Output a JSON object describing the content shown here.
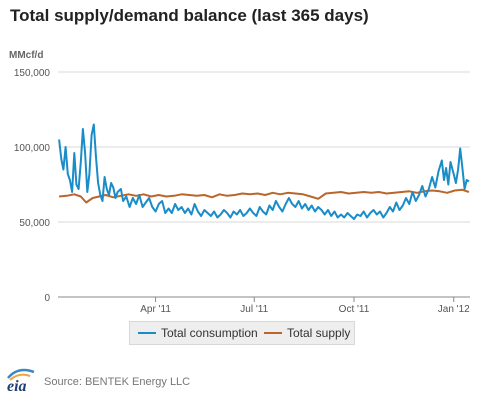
{
  "chart_data": {
    "type": "line",
    "title": "Total supply/demand balance (last 365 days)",
    "ylabel": "MMcf/d",
    "xlabel": "",
    "ylim": [
      0,
      150000
    ],
    "yticks": [
      0,
      50000,
      100000,
      150000
    ],
    "ytick_labels": [
      "0",
      "50,000",
      "100,000",
      "150,000"
    ],
    "xlim": [
      "2011-01-01",
      "2012-01-16"
    ],
    "xticks": [
      "2011-04-01",
      "2011-07-01",
      "2011-10-01",
      "2012-01-01"
    ],
    "xtick_labels": [
      "Apr '11",
      "Jul '11",
      "Oct '11",
      "Jan '12"
    ],
    "grid": "horizontal",
    "legend": "bottom",
    "series": [
      {
        "name": "Total consumption",
        "color": "#1a8dc9",
        "points": [
          [
            "2011-01-02",
            105000
          ],
          [
            "2011-01-04",
            92000
          ],
          [
            "2011-01-06",
            85000
          ],
          [
            "2011-01-08",
            100000
          ],
          [
            "2011-01-10",
            82000
          ],
          [
            "2011-01-12",
            78000
          ],
          [
            "2011-01-14",
            70000
          ],
          [
            "2011-01-16",
            96000
          ],
          [
            "2011-01-18",
            75000
          ],
          [
            "2011-01-20",
            72000
          ],
          [
            "2011-01-22",
            90000
          ],
          [
            "2011-01-24",
            112000
          ],
          [
            "2011-01-26",
            96000
          ],
          [
            "2011-01-28",
            70000
          ],
          [
            "2011-01-30",
            82000
          ],
          [
            "2011-02-01",
            108000
          ],
          [
            "2011-02-03",
            115000
          ],
          [
            "2011-02-05",
            94000
          ],
          [
            "2011-02-07",
            76000
          ],
          [
            "2011-02-09",
            68000
          ],
          [
            "2011-02-11",
            64000
          ],
          [
            "2011-02-13",
            80000
          ],
          [
            "2011-02-15",
            72000
          ],
          [
            "2011-02-17",
            68000
          ],
          [
            "2011-02-19",
            76000
          ],
          [
            "2011-02-21",
            73000
          ],
          [
            "2011-02-23",
            66000
          ],
          [
            "2011-02-25",
            70000
          ],
          [
            "2011-02-28",
            72000
          ],
          [
            "2011-03-02",
            64000
          ],
          [
            "2011-03-05",
            67000
          ],
          [
            "2011-03-08",
            60000
          ],
          [
            "2011-03-11",
            66000
          ],
          [
            "2011-03-14",
            62000
          ],
          [
            "2011-03-17",
            68000
          ],
          [
            "2011-03-20",
            60000
          ],
          [
            "2011-03-23",
            63000
          ],
          [
            "2011-03-26",
            66000
          ],
          [
            "2011-03-29",
            60000
          ],
          [
            "2011-04-01",
            57000
          ],
          [
            "2011-04-04",
            62000
          ],
          [
            "2011-04-07",
            64000
          ],
          [
            "2011-04-10",
            56000
          ],
          [
            "2011-04-13",
            59000
          ],
          [
            "2011-04-16",
            56000
          ],
          [
            "2011-04-19",
            62000
          ],
          [
            "2011-04-22",
            58000
          ],
          [
            "2011-04-25",
            60000
          ],
          [
            "2011-04-28",
            56000
          ],
          [
            "2011-05-01",
            59000
          ],
          [
            "2011-05-04",
            55000
          ],
          [
            "2011-05-07",
            62000
          ],
          [
            "2011-05-10",
            57000
          ],
          [
            "2011-05-13",
            54000
          ],
          [
            "2011-05-16",
            58000
          ],
          [
            "2011-05-19",
            56000
          ],
          [
            "2011-05-22",
            54000
          ],
          [
            "2011-05-25",
            57000
          ],
          [
            "2011-05-28",
            53000
          ],
          [
            "2011-05-31",
            55000
          ],
          [
            "2011-06-03",
            58000
          ],
          [
            "2011-06-06",
            56000
          ],
          [
            "2011-06-09",
            53000
          ],
          [
            "2011-06-12",
            57000
          ],
          [
            "2011-06-15",
            55000
          ],
          [
            "2011-06-18",
            58000
          ],
          [
            "2011-06-21",
            54000
          ],
          [
            "2011-06-24",
            56000
          ],
          [
            "2011-06-27",
            59000
          ],
          [
            "2011-06-30",
            56000
          ],
          [
            "2011-07-03",
            54000
          ],
          [
            "2011-07-06",
            60000
          ],
          [
            "2011-07-09",
            57000
          ],
          [
            "2011-07-12",
            55000
          ],
          [
            "2011-07-15",
            61000
          ],
          [
            "2011-07-18",
            58000
          ],
          [
            "2011-07-21",
            64000
          ],
          [
            "2011-07-24",
            60000
          ],
          [
            "2011-07-27",
            57000
          ],
          [
            "2011-07-30",
            62000
          ],
          [
            "2011-08-02",
            66000
          ],
          [
            "2011-08-05",
            62000
          ],
          [
            "2011-08-08",
            60000
          ],
          [
            "2011-08-11",
            64000
          ],
          [
            "2011-08-14",
            59000
          ],
          [
            "2011-08-17",
            62000
          ],
          [
            "2011-08-20",
            58000
          ],
          [
            "2011-08-23",
            61000
          ],
          [
            "2011-08-26",
            57000
          ],
          [
            "2011-08-29",
            60000
          ],
          [
            "2011-09-01",
            58000
          ],
          [
            "2011-09-04",
            55000
          ],
          [
            "2011-09-07",
            58000
          ],
          [
            "2011-09-10",
            54000
          ],
          [
            "2011-09-13",
            57000
          ],
          [
            "2011-09-16",
            53000
          ],
          [
            "2011-09-19",
            55000
          ],
          [
            "2011-09-22",
            53000
          ],
          [
            "2011-09-25",
            56000
          ],
          [
            "2011-09-28",
            54000
          ],
          [
            "2011-10-01",
            52000
          ],
          [
            "2011-10-04",
            55000
          ],
          [
            "2011-10-07",
            54000
          ],
          [
            "2011-10-10",
            57000
          ],
          [
            "2011-10-13",
            53000
          ],
          [
            "2011-10-16",
            56000
          ],
          [
            "2011-10-19",
            58000
          ],
          [
            "2011-10-22",
            55000
          ],
          [
            "2011-10-25",
            57000
          ],
          [
            "2011-10-28",
            53000
          ],
          [
            "2011-10-31",
            56000
          ],
          [
            "2011-11-03",
            60000
          ],
          [
            "2011-11-06",
            57000
          ],
          [
            "2011-11-09",
            63000
          ],
          [
            "2011-11-12",
            58000
          ],
          [
            "2011-11-15",
            61000
          ],
          [
            "2011-11-18",
            66000
          ],
          [
            "2011-11-21",
            62000
          ],
          [
            "2011-11-24",
            70000
          ],
          [
            "2011-11-27",
            64000
          ],
          [
            "2011-11-30",
            68000
          ],
          [
            "2011-12-03",
            74000
          ],
          [
            "2011-12-06",
            67000
          ],
          [
            "2011-12-09",
            72000
          ],
          [
            "2011-12-12",
            80000
          ],
          [
            "2011-12-15",
            73000
          ],
          [
            "2011-12-18",
            84000
          ],
          [
            "2011-12-21",
            91000
          ],
          [
            "2011-12-23",
            78000
          ],
          [
            "2011-12-25",
            86000
          ],
          [
            "2011-12-27",
            75000
          ],
          [
            "2011-12-29",
            90000
          ],
          [
            "2012-01-01",
            82000
          ],
          [
            "2012-01-03",
            76000
          ],
          [
            "2012-01-05",
            85000
          ],
          [
            "2012-01-07",
            99000
          ],
          [
            "2012-01-09",
            86000
          ],
          [
            "2012-01-11",
            72000
          ],
          [
            "2012-01-13",
            78000
          ],
          [
            "2012-01-15",
            77000
          ]
        ]
      },
      {
        "name": "Total supply",
        "color": "#b9662b",
        "points": [
          [
            "2011-01-02",
            67000
          ],
          [
            "2011-01-09",
            67500
          ],
          [
            "2011-01-16",
            68500
          ],
          [
            "2011-01-22",
            67000
          ],
          [
            "2011-01-27",
            63000
          ],
          [
            "2011-02-02",
            66000
          ],
          [
            "2011-02-08",
            67000
          ],
          [
            "2011-02-14",
            68000
          ],
          [
            "2011-02-21",
            66500
          ],
          [
            "2011-02-28",
            67500
          ],
          [
            "2011-03-07",
            68500
          ],
          [
            "2011-03-14",
            67500
          ],
          [
            "2011-03-21",
            68500
          ],
          [
            "2011-03-28",
            67000
          ],
          [
            "2011-04-04",
            68000
          ],
          [
            "2011-04-11",
            67000
          ],
          [
            "2011-04-18",
            67500
          ],
          [
            "2011-04-25",
            68500
          ],
          [
            "2011-05-02",
            68000
          ],
          [
            "2011-05-09",
            67500
          ],
          [
            "2011-05-16",
            68000
          ],
          [
            "2011-05-23",
            66500
          ],
          [
            "2011-05-30",
            68500
          ],
          [
            "2011-06-06",
            67500
          ],
          [
            "2011-06-13",
            68000
          ],
          [
            "2011-06-20",
            69000
          ],
          [
            "2011-06-27",
            68500
          ],
          [
            "2011-07-04",
            69000
          ],
          [
            "2011-07-11",
            68000
          ],
          [
            "2011-07-18",
            69500
          ],
          [
            "2011-07-25",
            68500
          ],
          [
            "2011-08-01",
            69500
          ],
          [
            "2011-08-08",
            69000
          ],
          [
            "2011-08-15",
            68500
          ],
          [
            "2011-08-22",
            67000
          ],
          [
            "2011-08-29",
            65500
          ],
          [
            "2011-09-05",
            69000
          ],
          [
            "2011-09-12",
            69500
          ],
          [
            "2011-09-19",
            70000
          ],
          [
            "2011-09-26",
            69000
          ],
          [
            "2011-10-03",
            69500
          ],
          [
            "2011-10-10",
            70000
          ],
          [
            "2011-10-17",
            69500
          ],
          [
            "2011-10-24",
            70000
          ],
          [
            "2011-10-31",
            69000
          ],
          [
            "2011-11-07",
            69500
          ],
          [
            "2011-11-14",
            70000
          ],
          [
            "2011-11-21",
            70500
          ],
          [
            "2011-11-28",
            69500
          ],
          [
            "2011-12-05",
            70500
          ],
          [
            "2011-12-12",
            71000
          ],
          [
            "2011-12-19",
            70500
          ],
          [
            "2011-12-26",
            69500
          ],
          [
            "2012-01-02",
            71000
          ],
          [
            "2012-01-09",
            71500
          ],
          [
            "2012-01-15",
            70000
          ]
        ]
      }
    ]
  },
  "footer": {
    "logo_text": "eia",
    "source": "Source: BENTEK Energy LLC"
  }
}
